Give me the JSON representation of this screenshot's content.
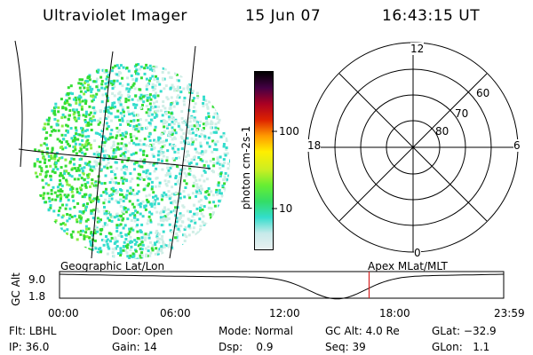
{
  "header": {
    "title": "Ultraviolet Imager",
    "date": "15 Jun 07",
    "time": "16:43:15 UT"
  },
  "colors": {
    "globe_green": "#33dd33",
    "globe_cyan": "#33ddcc",
    "globe_pale": "#cfeee6",
    "marker_red": "#d62020",
    "colorbar": [
      "#e8f0f0",
      "#c8eaea",
      "#33ddcc",
      "#33dd66",
      "#66ee33",
      "#ccee22",
      "#ffee00",
      "#ff9900",
      "#dd2200",
      "#aa0022",
      "#440044",
      "#000000"
    ]
  },
  "colorbar": {
    "unit_label": "photon cm-2s-1",
    "ticks": [
      "100",
      "10"
    ]
  },
  "polar_plot": {
    "clock_labels": {
      "top": "12",
      "left": "18",
      "right": "6",
      "bottom": "0"
    },
    "lat_labels": [
      "60",
      "70",
      "80"
    ]
  },
  "timeline": {
    "y_axis_title": "GC Alt",
    "y_ticks": [
      "9.0",
      "1.8"
    ],
    "left_label": "Geographic Lat/Lon",
    "right_label": "Apex MLat/MLT",
    "x_ticks": [
      "00:00",
      "06:00",
      "12:00",
      "18:00",
      "23:59"
    ],
    "marker_time": "16:43"
  },
  "footer": {
    "row1": [
      {
        "label": "Flt:",
        "value": "LBHL"
      },
      {
        "label": "Door:",
        "value": "Open"
      },
      {
        "label": "Mode:",
        "value": "Normal"
      },
      {
        "label": "GC Alt:",
        "value": "4.0 Re"
      },
      {
        "label": "GLat:",
        "value": "−32.9"
      }
    ],
    "row2": [
      {
        "label": "IP:",
        "value": "36.0"
      },
      {
        "label": "Gain:",
        "value": "14"
      },
      {
        "label": "Dsp:",
        "value": "0.9"
      },
      {
        "label": "Seq:",
        "value": "39"
      },
      {
        "label": "GLon:",
        "value": "1.1"
      }
    ]
  }
}
